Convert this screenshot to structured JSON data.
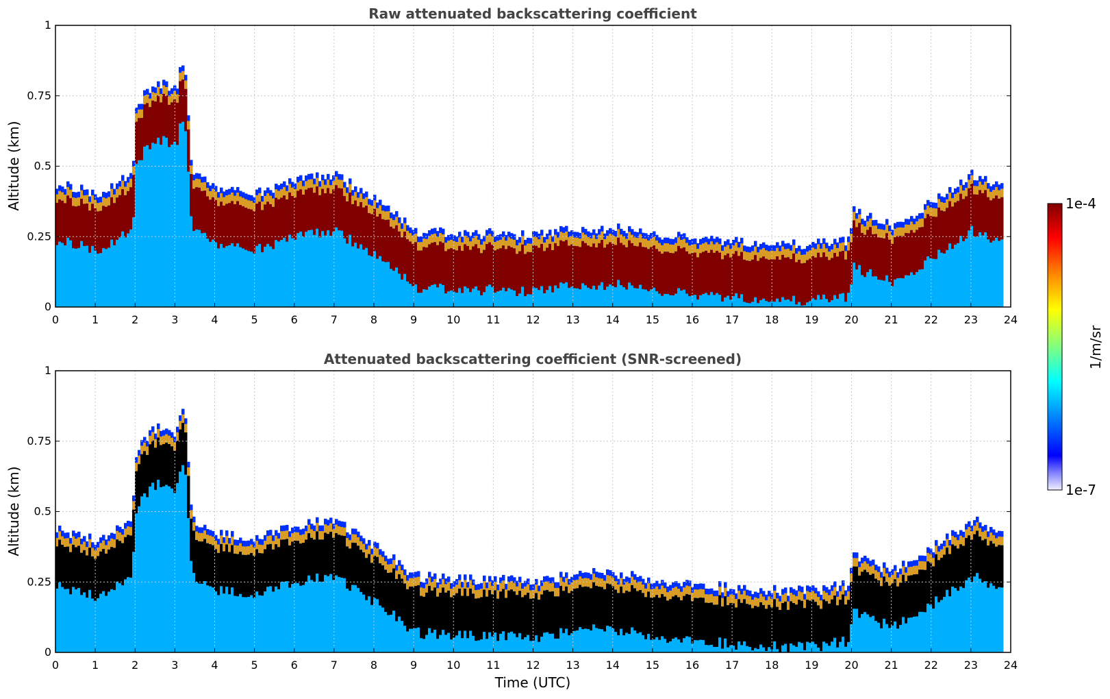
{
  "chart_data": [
    {
      "type": "heatmap",
      "title": "Raw attenuated backscattering coefficient",
      "xlabel": "",
      "ylabel": "Altitude (km)",
      "xlim": [
        0,
        24
      ],
      "ylim": [
        0,
        1
      ],
      "xticks": [
        "0",
        "1",
        "2",
        "3",
        "4",
        "5",
        "6",
        "7",
        "8",
        "9",
        "10",
        "11",
        "12",
        "13",
        "14",
        "15",
        "16",
        "17",
        "18",
        "19",
        "20",
        "21",
        "22",
        "23",
        "24"
      ],
      "yticks": [
        "0",
        "0.25",
        "0.5",
        "0.75",
        "1"
      ],
      "grid": true,
      "screened": false,
      "layer_top_km": [
        {
          "t": 0,
          "h": 0.42
        },
        {
          "t": 0.5,
          "h": 0.4
        },
        {
          "t": 1,
          "h": 0.38
        },
        {
          "t": 1.5,
          "h": 0.42
        },
        {
          "t": 1.9,
          "h": 0.45
        },
        {
          "t": 2,
          "h": 0.7
        },
        {
          "t": 2.5,
          "h": 0.78
        },
        {
          "t": 3,
          "h": 0.75
        },
        {
          "t": 3.2,
          "h": 0.88
        },
        {
          "t": 3.4,
          "h": 0.45
        },
        {
          "t": 4,
          "h": 0.4
        },
        {
          "t": 5,
          "h": 0.38
        },
        {
          "t": 6,
          "h": 0.43
        },
        {
          "t": 7,
          "h": 0.45
        },
        {
          "t": 8,
          "h": 0.36
        },
        {
          "t": 9,
          "h": 0.25
        },
        {
          "t": 10,
          "h": 0.24
        },
        {
          "t": 11,
          "h": 0.24
        },
        {
          "t": 12,
          "h": 0.23
        },
        {
          "t": 13,
          "h": 0.26
        },
        {
          "t": 14,
          "h": 0.26
        },
        {
          "t": 15,
          "h": 0.24
        },
        {
          "t": 16,
          "h": 0.22
        },
        {
          "t": 17,
          "h": 0.21
        },
        {
          "t": 18,
          "h": 0.2
        },
        {
          "t": 19,
          "h": 0.2
        },
        {
          "t": 19.9,
          "h": 0.22
        },
        {
          "t": 20,
          "h": 0.32
        },
        {
          "t": 21,
          "h": 0.27
        },
        {
          "t": 22,
          "h": 0.35
        },
        {
          "t": 23,
          "h": 0.45
        },
        {
          "t": 23.8,
          "h": 0.4
        }
      ]
    },
    {
      "type": "heatmap",
      "title": "Attenuated backscattering coefficient (SNR-screened)",
      "xlabel": "Time (UTC)",
      "ylabel": "Altitude (km)",
      "xlim": [
        0,
        24
      ],
      "ylim": [
        0,
        1
      ],
      "xticks": [
        "0",
        "1",
        "2",
        "3",
        "4",
        "5",
        "6",
        "7",
        "8",
        "9",
        "10",
        "11",
        "12",
        "13",
        "14",
        "15",
        "16",
        "17",
        "18",
        "19",
        "20",
        "21",
        "22",
        "23",
        "24"
      ],
      "yticks": [
        "0",
        "0.25",
        "0.5",
        "0.75",
        "1"
      ],
      "grid": true,
      "screened": true
    }
  ],
  "colorbar": {
    "label": "1/m/sr",
    "max_label": "1e-4",
    "min_label": "1e-7",
    "scale": "log",
    "colormap": "jet"
  },
  "colors": {
    "title": "#444444",
    "grid": "#c8c8c8",
    "layer_core": "#800000",
    "screened_core": "#000000",
    "surface": "#00b0ff"
  }
}
